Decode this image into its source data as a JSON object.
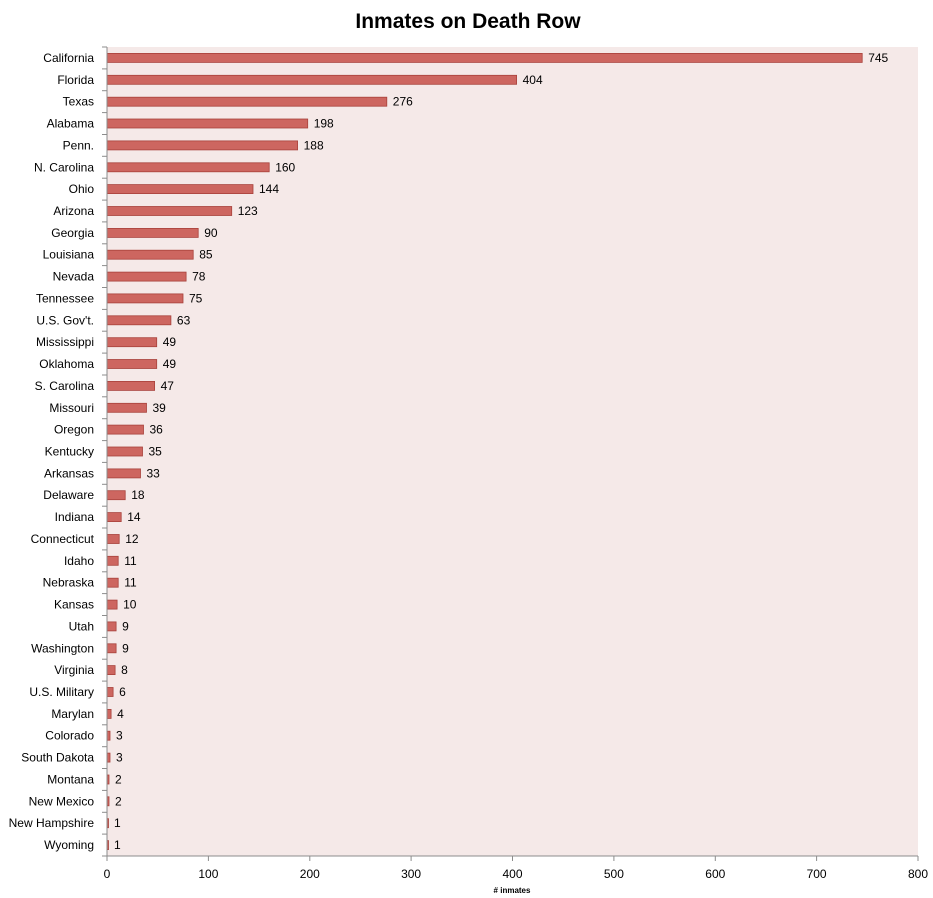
{
  "chart_data": {
    "type": "bar",
    "orientation": "horizontal",
    "title": "Inmates on Death Row",
    "xlabel": "# inmates",
    "ylabel": "",
    "xlim": [
      0,
      800
    ],
    "xticks": [
      0,
      100,
      200,
      300,
      400,
      500,
      600,
      700,
      800
    ],
    "grid": false,
    "legend": "none",
    "colors": {
      "bar_fill": "#cd6660",
      "bar_stroke": "#a8413b",
      "plot_background": "#f5e9e8",
      "axis": "#8c8c8c"
    },
    "categories": [
      "California",
      "Florida",
      "Texas",
      "Alabama",
      "Penn.",
      "N. Carolina",
      "Ohio",
      "Arizona",
      "Georgia",
      "Louisiana",
      "Nevada",
      "Tennessee",
      "U.S. Gov't.",
      "Mississippi",
      "Oklahoma",
      "S. Carolina",
      "Missouri",
      "Oregon",
      "Kentucky",
      "Arkansas",
      "Delaware",
      "Indiana",
      "Connecticut",
      "Idaho",
      "Nebraska",
      "Kansas",
      "Utah",
      "Washington",
      "Virginia",
      "U.S. Military",
      "Marylan",
      "Colorado",
      "South Dakota",
      "Montana",
      "New Mexico",
      "New Hampshire",
      "Wyoming"
    ],
    "values": [
      745,
      404,
      276,
      198,
      188,
      160,
      144,
      123,
      90,
      85,
      78,
      75,
      63,
      49,
      49,
      47,
      39,
      36,
      35,
      33,
      18,
      14,
      12,
      11,
      11,
      10,
      9,
      9,
      8,
      6,
      4,
      3,
      3,
      2,
      2,
      1,
      1
    ]
  }
}
